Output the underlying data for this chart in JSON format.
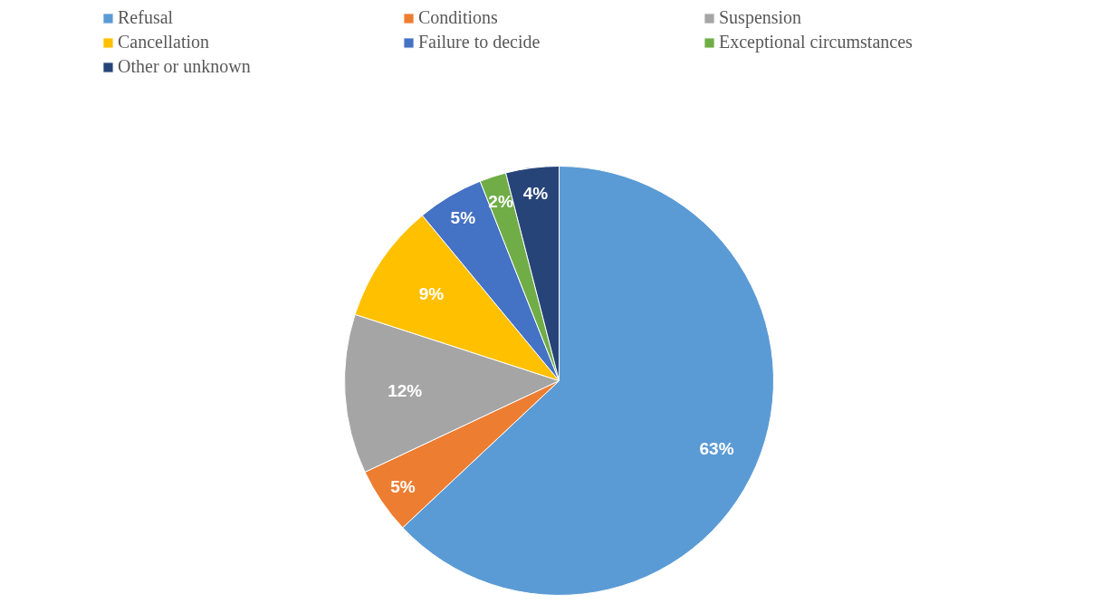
{
  "chart_data": {
    "type": "pie",
    "categories": [
      "Refusal",
      "Conditions",
      "Suspension",
      "Cancellation",
      "Failure to decide",
      "Exceptional circumstances",
      "Other or unknown"
    ],
    "values": [
      63,
      5,
      12,
      9,
      5,
      2,
      4
    ],
    "colors": [
      "#5b9bd5",
      "#ed7d31",
      "#a5a5a5",
      "#ffc000",
      "#4472c4",
      "#70ad47",
      "#264478"
    ],
    "value_labels": [
      "63%",
      "5%",
      "12%",
      "9%",
      "5%",
      "2%",
      "4%"
    ],
    "legend": "top"
  }
}
